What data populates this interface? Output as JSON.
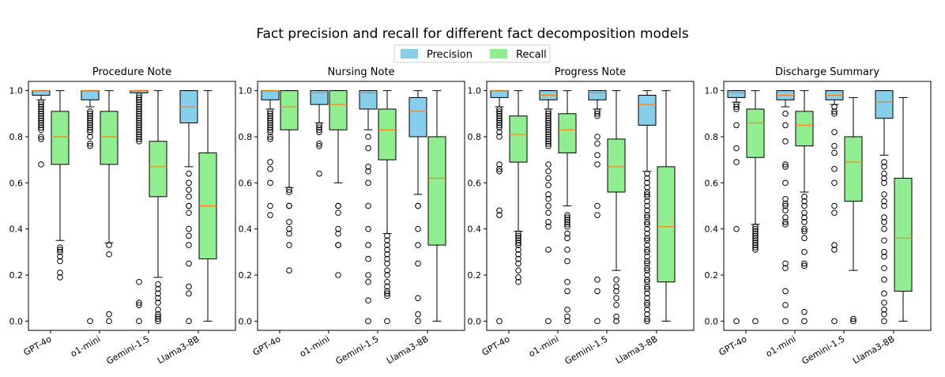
{
  "title": "Fact precision and recall for different fact decomposition models",
  "colors": {
    "precision": "#87ceeb",
    "recall": "#90ee90",
    "median": "#ff7f0e"
  },
  "legend": {
    "placement": "top-center",
    "items": [
      "Precision",
      "Recall"
    ]
  },
  "chart_data": [
    {
      "type": "boxplot",
      "title": "Procedure Note",
      "categories": [
        "GPT-4o",
        "o1-mini",
        "Gemini-1.5",
        "Llama3-8B"
      ],
      "ylim": [
        -0.04,
        1.04
      ],
      "yticks": [
        "0.0",
        "0.2",
        "0.4",
        "0.6",
        "0.8",
        "1.0"
      ],
      "series": [
        {
          "name": "Precision",
          "boxes": [
            {
              "q1": 0.98,
              "med": 1.0,
              "q3": 1.0,
              "wlo": 0.96,
              "whi": 1.0,
              "fliers": [
                0.95,
                0.94,
                0.93,
                0.92,
                0.91,
                0.9,
                0.89,
                0.88,
                0.87,
                0.86,
                0.85,
                0.84,
                0.83,
                0.8,
                0.79,
                0.68
              ]
            },
            {
              "q1": 0.96,
              "med": 1.0,
              "q3": 1.0,
              "wlo": 0.93,
              "whi": 1.0,
              "fliers": [
                0.91,
                0.9,
                0.89,
                0.88,
                0.87,
                0.86,
                0.85,
                0.84,
                0.83,
                0.82,
                0.8,
                0.77,
                0.76,
                0.0
              ]
            },
            {
              "q1": 0.99,
              "med": 1.0,
              "q3": 1.0,
              "wlo": 0.99,
              "whi": 1.0,
              "fliers": [
                0.98,
                0.97,
                0.96,
                0.95,
                0.94,
                0.93,
                0.92,
                0.91,
                0.9,
                0.89,
                0.88,
                0.87,
                0.86,
                0.85,
                0.84,
                0.83,
                0.82,
                0.81,
                0.8,
                0.79,
                0.78,
                0.17,
                0.08,
                0.07,
                0.0
              ]
            },
            {
              "q1": 0.86,
              "med": 0.93,
              "q3": 1.0,
              "wlo": 0.67,
              "whi": 1.0,
              "fliers": [
                0.64,
                0.6,
                0.57,
                0.54,
                0.5,
                0.5,
                0.47,
                0.4,
                0.37,
                0.33,
                0.25,
                0.15,
                0.12,
                0.0
              ]
            }
          ]
        },
        {
          "name": "Recall",
          "boxes": [
            {
              "q1": 0.68,
              "med": 0.8,
              "q3": 0.91,
              "wlo": 0.35,
              "whi": 1.0,
              "fliers": [
                0.32,
                0.31,
                0.3,
                0.28,
                0.26,
                0.21,
                0.19
              ]
            },
            {
              "q1": 0.68,
              "med": 0.8,
              "q3": 0.91,
              "wlo": 0.34,
              "whi": 1.0,
              "fliers": [
                0.33,
                0.29,
                0.03,
                0.0
              ]
            },
            {
              "q1": 0.54,
              "med": 0.67,
              "q3": 0.78,
              "wlo": 0.19,
              "whi": 1.0,
              "fliers": [
                0.16,
                0.14,
                0.12,
                0.1,
                0.08,
                0.05,
                0.03,
                0.02,
                0.01,
                0.0
              ]
            },
            {
              "q1": 0.27,
              "med": 0.5,
              "q3": 0.73,
              "wlo": 0.0,
              "whi": 1.0,
              "fliers": []
            }
          ]
        }
      ]
    },
    {
      "type": "boxplot",
      "title": "Nursing Note",
      "categories": [
        "GPT-4o",
        "o1-mini",
        "Gemini-1.5",
        "Llama3-8B"
      ],
      "ylim": [
        -0.04,
        1.04
      ],
      "yticks": [
        "0.0",
        "0.2",
        "0.4",
        "0.6",
        "0.8",
        "1.0"
      ],
      "series": [
        {
          "name": "Precision",
          "boxes": [
            {
              "q1": 0.96,
              "med": 1.0,
              "q3": 1.0,
              "wlo": 0.92,
              "whi": 1.0,
              "fliers": [
                0.91,
                0.9,
                0.89,
                0.88,
                0.87,
                0.86,
                0.85,
                0.84,
                0.83,
                0.82,
                0.8,
                0.79,
                0.69,
                0.66,
                0.6,
                0.5,
                0.46
              ]
            },
            {
              "q1": 0.94,
              "med": 0.99,
              "q3": 1.0,
              "wlo": 0.86,
              "whi": 1.0,
              "fliers": [
                0.85,
                0.84,
                0.83,
                0.82,
                0.77,
                0.76,
                0.64
              ]
            },
            {
              "q1": 0.92,
              "med": 0.99,
              "q3": 1.0,
              "wlo": 0.83,
              "whi": 1.0,
              "fliers": [
                0.8,
                0.75,
                0.67,
                0.65,
                0.6,
                0.5,
                0.4,
                0.33,
                0.27,
                0.2,
                0.17,
                0.09,
                0.0
              ]
            },
            {
              "q1": 0.8,
              "med": 0.91,
              "q3": 0.97,
              "wlo": 0.55,
              "whi": 1.0,
              "fliers": [
                0.5,
                0.5,
                0.4,
                0.33,
                0.25,
                0.1,
                0.03,
                0.0
              ]
            }
          ]
        },
        {
          "name": "Recall",
          "boxes": [
            {
              "q1": 0.83,
              "med": 0.93,
              "q3": 1.0,
              "wlo": 0.58,
              "whi": 1.0,
              "fliers": [
                0.57,
                0.56,
                0.5,
                0.5,
                0.43,
                0.4,
                0.38,
                0.33,
                0.22
              ]
            },
            {
              "q1": 0.83,
              "med": 0.94,
              "q3": 1.0,
              "wlo": 0.6,
              "whi": 1.0,
              "fliers": [
                0.5,
                0.5,
                0.47,
                0.4,
                0.38,
                0.33,
                0.33,
                0.2
              ]
            },
            {
              "q1": 0.7,
              "med": 0.83,
              "q3": 0.92,
              "wlo": 0.38,
              "whi": 1.0,
              "fliers": [
                0.37,
                0.35,
                0.33,
                0.31,
                0.29,
                0.27,
                0.25,
                0.22,
                0.2,
                0.17,
                0.15,
                0.13,
                0.12,
                0.11,
                0.0
              ]
            },
            {
              "q1": 0.33,
              "med": 0.62,
              "q3": 0.8,
              "wlo": 0.0,
              "whi": 1.0,
              "fliers": []
            }
          ]
        }
      ]
    },
    {
      "type": "boxplot",
      "title": "Progress Note",
      "categories": [
        "GPT-4o",
        "o1-mini",
        "Gemini-1.5",
        "Llama3-8B"
      ],
      "ylim": [
        -0.04,
        1.04
      ],
      "yticks": [
        "0.0",
        "0.2",
        "0.4",
        "0.6",
        "0.8",
        "1.0"
      ],
      "series": [
        {
          "name": "Precision",
          "boxes": [
            {
              "q1": 0.97,
              "med": 1.0,
              "q3": 1.0,
              "wlo": 0.93,
              "whi": 1.0,
              "fliers": [
                0.92,
                0.91,
                0.9,
                0.89,
                0.88,
                0.87,
                0.86,
                0.85,
                0.84,
                0.82,
                0.8,
                0.68,
                0.66,
                0.65,
                0.48,
                0.46,
                0.0
              ]
            },
            {
              "q1": 0.96,
              "med": 0.98,
              "q3": 1.0,
              "wlo": 0.92,
              "whi": 1.0,
              "fliers": [
                0.91,
                0.9,
                0.89,
                0.88,
                0.87,
                0.86,
                0.85,
                0.84,
                0.83,
                0.82,
                0.81,
                0.8,
                0.79,
                0.78,
                0.77,
                0.76,
                0.68,
                0.65,
                0.62,
                0.59,
                0.55,
                0.53,
                0.5,
                0.47,
                0.43,
                0.41,
                0.31,
                0.0
              ]
            },
            {
              "q1": 0.96,
              "med": 0.99,
              "q3": 1.0,
              "wlo": 0.92,
              "whi": 1.0,
              "fliers": [
                0.91,
                0.9,
                0.89,
                0.8,
                0.77,
                0.72,
                0.68,
                0.5,
                0.46,
                0.18,
                0.13,
                0.0
              ]
            },
            {
              "q1": 0.85,
              "med": 0.94,
              "q3": 0.98,
              "wlo": 0.65,
              "whi": 1.0,
              "fliers": [
                0.64,
                0.62,
                0.6,
                0.58,
                0.56,
                0.55,
                0.54,
                0.52,
                0.5,
                0.48,
                0.46,
                0.45,
                0.43,
                0.42,
                0.4,
                0.38,
                0.36,
                0.35,
                0.33,
                0.31,
                0.3,
                0.28,
                0.26,
                0.25,
                0.23,
                0.22,
                0.2,
                0.18,
                0.17,
                0.15,
                0.14,
                0.12,
                0.1,
                0.08,
                0.07,
                0.05,
                0.03,
                0.01,
                0.0
              ]
            }
          ]
        },
        {
          "name": "Recall",
          "boxes": [
            {
              "q1": 0.69,
              "med": 0.81,
              "q3": 0.89,
              "wlo": 0.39,
              "whi": 1.0,
              "fliers": [
                0.38,
                0.37,
                0.36,
                0.35,
                0.34,
                0.33,
                0.31,
                0.29,
                0.27,
                0.25,
                0.22,
                0.19,
                0.17
              ]
            },
            {
              "q1": 0.73,
              "med": 0.83,
              "q3": 0.9,
              "wlo": 0.5,
              "whi": 1.0,
              "fliers": [
                0.46,
                0.45,
                0.44,
                0.43,
                0.42,
                0.41,
                0.38,
                0.36,
                0.31,
                0.26,
                0.17,
                0.13,
                0.05,
                0.02,
                0.0
              ]
            },
            {
              "q1": 0.56,
              "med": 0.67,
              "q3": 0.79,
              "wlo": 0.22,
              "whi": 1.0,
              "fliers": [
                0.18,
                0.15,
                0.13,
                0.1,
                0.07,
                0.02,
                0.0
              ]
            },
            {
              "q1": 0.17,
              "med": 0.41,
              "q3": 0.67,
              "wlo": 0.0,
              "whi": 1.0,
              "fliers": []
            }
          ]
        }
      ]
    },
    {
      "type": "boxplot",
      "title": "Discharge Summary",
      "categories": [
        "GPT-4o",
        "o1-mini",
        "Gemini-1.5",
        "Llama3-8B"
      ],
      "ylim": [
        -0.04,
        1.04
      ],
      "yticks": [
        "0.0",
        "0.2",
        "0.4",
        "0.6",
        "0.8",
        "1.0"
      ],
      "series": [
        {
          "name": "Precision",
          "boxes": [
            {
              "q1": 0.97,
              "med": 0.99,
              "q3": 1.0,
              "wlo": 0.95,
              "whi": 1.0,
              "fliers": [
                0.94,
                0.93,
                0.92,
                0.85,
                0.75,
                0.69,
                0.4,
                0.0
              ]
            },
            {
              "q1": 0.96,
              "med": 0.98,
              "q3": 1.0,
              "wlo": 0.93,
              "whi": 1.0,
              "fliers": [
                0.9,
                0.85,
                0.78,
                0.68,
                0.67,
                0.6,
                0.53,
                0.51,
                0.5,
                0.48,
                0.45,
                0.43,
                0.42,
                0.25,
                0.23,
                0.13,
                0.07,
                0.0
              ]
            },
            {
              "q1": 0.96,
              "med": 0.98,
              "q3": 1.0,
              "wlo": 0.94,
              "whi": 1.0,
              "fliers": [
                0.93,
                0.91,
                0.9,
                0.82,
                0.76,
                0.73,
                0.66,
                0.6,
                0.5,
                0.47,
                0.33,
                0.31,
                0.0
              ]
            },
            {
              "q1": 0.88,
              "med": 0.95,
              "q3": 1.0,
              "wlo": 0.72,
              "whi": 1.0,
              "fliers": [
                0.69,
                0.67,
                0.64,
                0.62,
                0.6,
                0.55,
                0.52,
                0.5,
                0.45,
                0.43,
                0.4,
                0.35,
                0.3,
                0.28,
                0.23,
                0.18,
                0.12,
                0.08,
                0.05,
                0.03,
                0.0
              ]
            }
          ]
        },
        {
          "name": "Recall",
          "boxes": [
            {
              "q1": 0.71,
              "med": 0.86,
              "q3": 0.92,
              "wlo": 0.42,
              "whi": 1.0,
              "fliers": [
                0.41,
                0.4,
                0.39,
                0.38,
                0.37,
                0.36,
                0.35,
                0.34,
                0.33,
                0.32,
                0.31,
                0.0
              ]
            },
            {
              "q1": 0.76,
              "med": 0.85,
              "q3": 0.91,
              "wlo": 0.56,
              "whi": 1.0,
              "fliers": [
                0.54,
                0.52,
                0.5,
                0.47,
                0.45,
                0.43,
                0.4,
                0.39,
                0.36,
                0.3,
                0.25,
                0.24,
                0.04,
                0.0
              ]
            },
            {
              "q1": 0.52,
              "med": 0.69,
              "q3": 0.8,
              "wlo": 0.22,
              "whi": 0.97,
              "fliers": [
                0.01,
                0.0
              ]
            },
            {
              "q1": 0.13,
              "med": 0.36,
              "q3": 0.62,
              "wlo": 0.0,
              "whi": 0.97,
              "fliers": []
            }
          ]
        }
      ]
    }
  ]
}
